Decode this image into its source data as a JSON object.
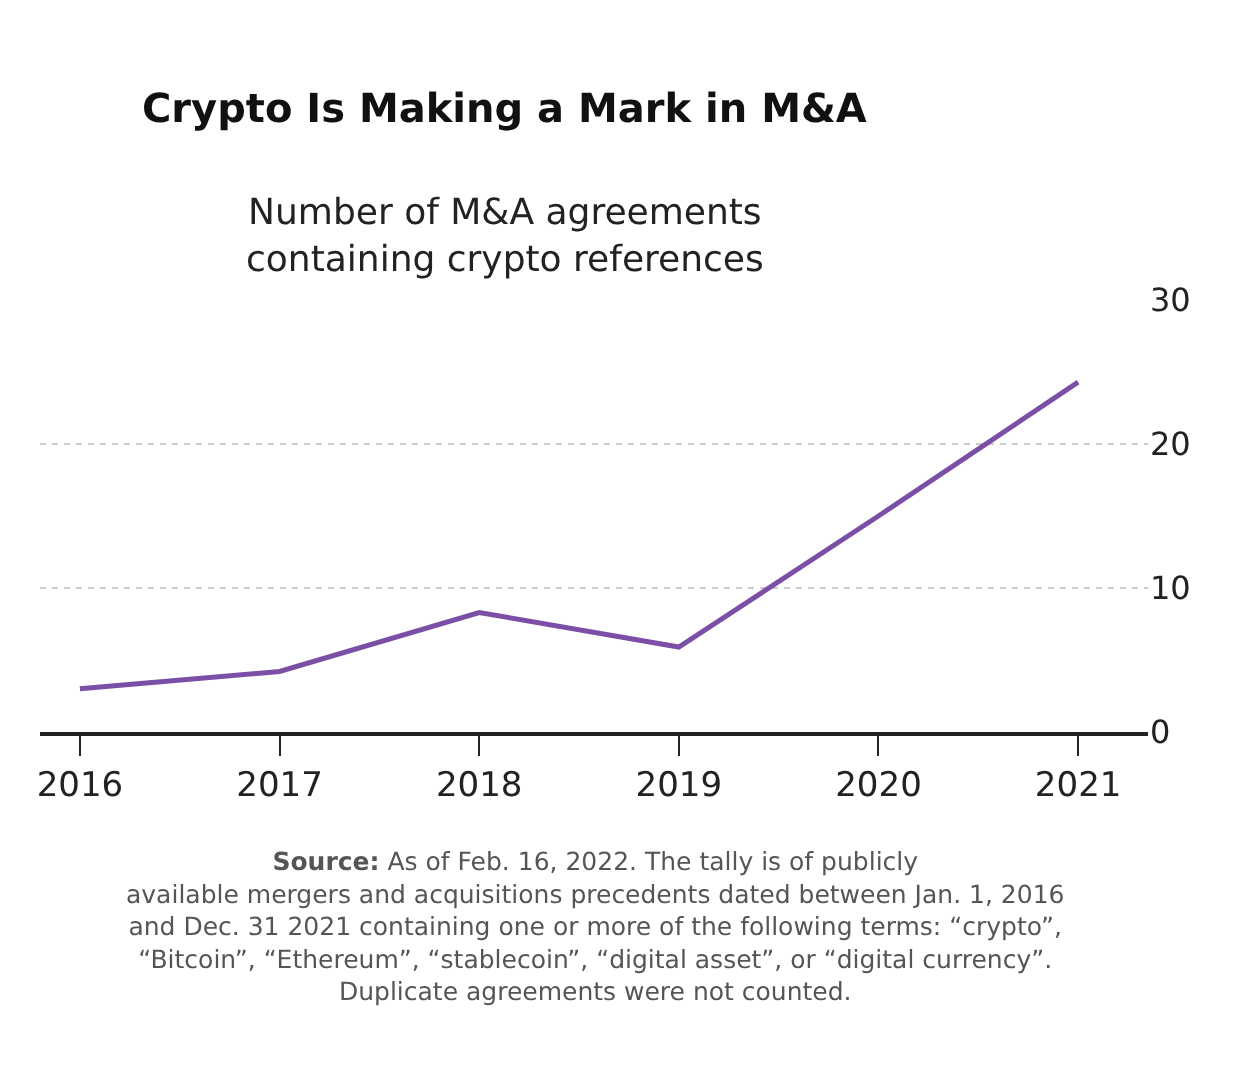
{
  "chart_data": {
    "type": "line",
    "title": "Crypto Is Making a Mark in M&A",
    "subtitle": "Number of M&A agreements\ncontaining crypto references",
    "x": [
      2016,
      2017,
      2018,
      2019,
      2020,
      2021
    ],
    "series": [
      {
        "color": "#7b4fa6",
        "values": [
          3,
          4.2,
          8.3,
          5.9,
          15,
          24.3
        ]
      }
    ],
    "xlim": [
      2015.8,
      2021.35
    ],
    "xticks": [
      2016,
      2017,
      2018,
      2019,
      2020,
      2021
    ],
    "ylim": [
      0,
      30
    ],
    "yticks": [
      0,
      10,
      20,
      30
    ],
    "grid": "y",
    "legend": false,
    "marker": "none",
    "line_style": "solid",
    "annotations": [
      "Source: As of Feb. 16, 2022. The tally is of publicly\navailable mergers and acquisitions precedents dated between Jan. 1, 2016\nand Dec. 31 2021 containing one or more of the following terms: “crypto”,\n“Bitcoin”, “Ethereum”, “stablecoin”, “digital asset”, or “digital currency”.\nDuplicate agreements were not counted."
    ]
  }
}
